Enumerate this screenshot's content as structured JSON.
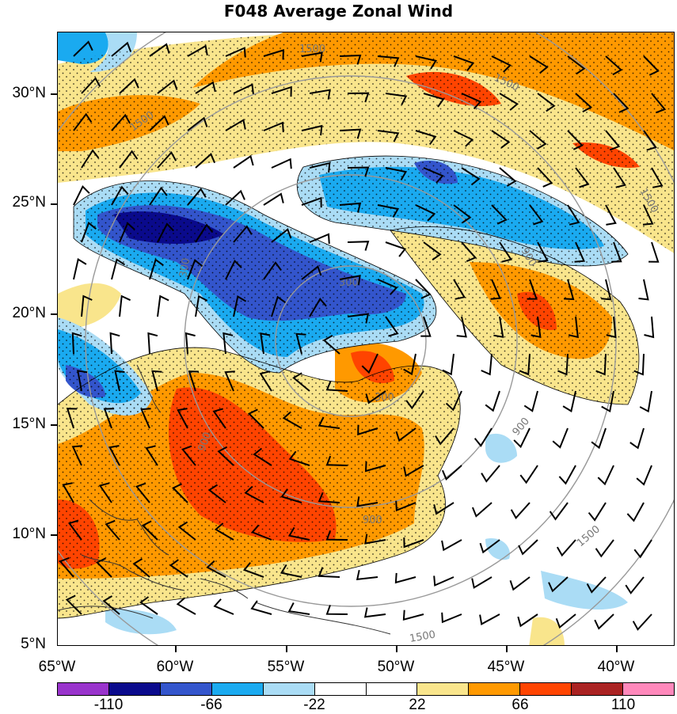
{
  "title": "F048 Average Zonal Wind",
  "lat_labels": [
    "30°N",
    "25°N",
    "20°N",
    "15°N",
    "10°N",
    "5°N"
  ],
  "lon_labels": [
    "65°W",
    "60°W",
    "55°W",
    "50°W",
    "45°W",
    "40°W"
  ],
  "colorbar": {
    "colors": [
      "#9933cc",
      "#0a0a8c",
      "#3355cc",
      "#1aaaf0",
      "#aadcf5",
      "#ffffff",
      "#ffffff",
      "#f9e58c",
      "#ff9900",
      "#ff4400",
      "#aa2222",
      "#ff88bb"
    ],
    "labels": [
      "-110",
      "-66",
      "-22",
      "22",
      "66",
      "110"
    ]
  },
  "contour_labels": [
    "1500",
    "1500",
    "1500",
    "1500",
    "1500",
    "1500",
    "900",
    "900",
    "900",
    "900",
    "300",
    "300",
    "300"
  ]
}
